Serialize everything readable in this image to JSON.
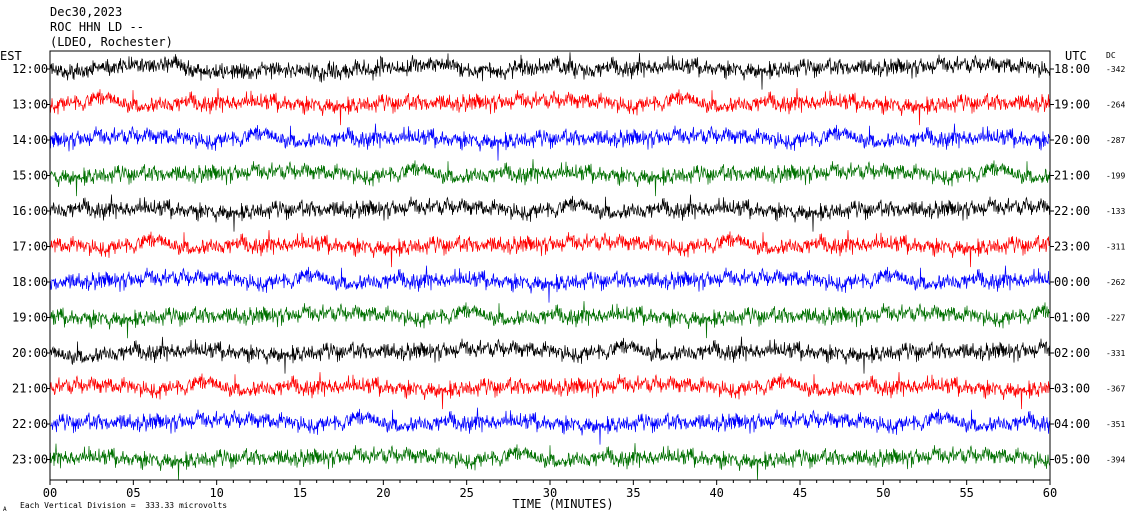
{
  "header": {
    "date": "Dec30,2023",
    "station": "ROC HHN LD --",
    "network": "(LDEO, Rochester)"
  },
  "left_axis_label": "EST",
  "right_axis_label": "UTC",
  "dc_label": "DC",
  "footer": {
    "scale_note": "Each Vertical Division =  333.33 microvolts",
    "corner_mark": "A"
  },
  "colors": {
    "trace_cycle": [
      "#000000",
      "#ff0000",
      "#0000ff",
      "#007000"
    ],
    "frame": "#000000",
    "background": "#ffffff"
  },
  "chart_data": {
    "type": "line",
    "title": "",
    "xlabel": "TIME (MINUTES)",
    "xlim": [
      0,
      60
    ],
    "x_ticks": [
      "00",
      "05",
      "10",
      "15",
      "20",
      "25",
      "30",
      "35",
      "40",
      "45",
      "50",
      "55",
      "60"
    ],
    "x_minor_step_minutes": 1,
    "series": [
      {
        "est": "12:00",
        "utc": "18:00",
        "dc": "-342",
        "color": "#000000"
      },
      {
        "est": "13:00",
        "utc": "19:00",
        "dc": "-264",
        "color": "#ff0000"
      },
      {
        "est": "14:00",
        "utc": "20:00",
        "dc": "-287",
        "color": "#0000ff"
      },
      {
        "est": "15:00",
        "utc": "21:00",
        "dc": "-199",
        "color": "#007000"
      },
      {
        "est": "16:00",
        "utc": "22:00",
        "dc": "-133",
        "color": "#000000"
      },
      {
        "est": "17:00",
        "utc": "23:00",
        "dc": "-311",
        "color": "#ff0000"
      },
      {
        "est": "18:00",
        "utc": "00:00",
        "dc": "-262",
        "color": "#0000ff"
      },
      {
        "est": "19:00",
        "utc": "01:00",
        "dc": "-227",
        "color": "#007000"
      },
      {
        "est": "20:00",
        "utc": "02:00",
        "dc": "-331",
        "color": "#000000"
      },
      {
        "est": "21:00",
        "utc": "03:00",
        "dc": "-367",
        "color": "#ff0000"
      },
      {
        "est": "22:00",
        "utc": "04:00",
        "dc": "-351",
        "color": "#0000ff"
      },
      {
        "est": "23:00",
        "utc": "05:00",
        "dc": "-394",
        "color": "#007000"
      }
    ]
  }
}
